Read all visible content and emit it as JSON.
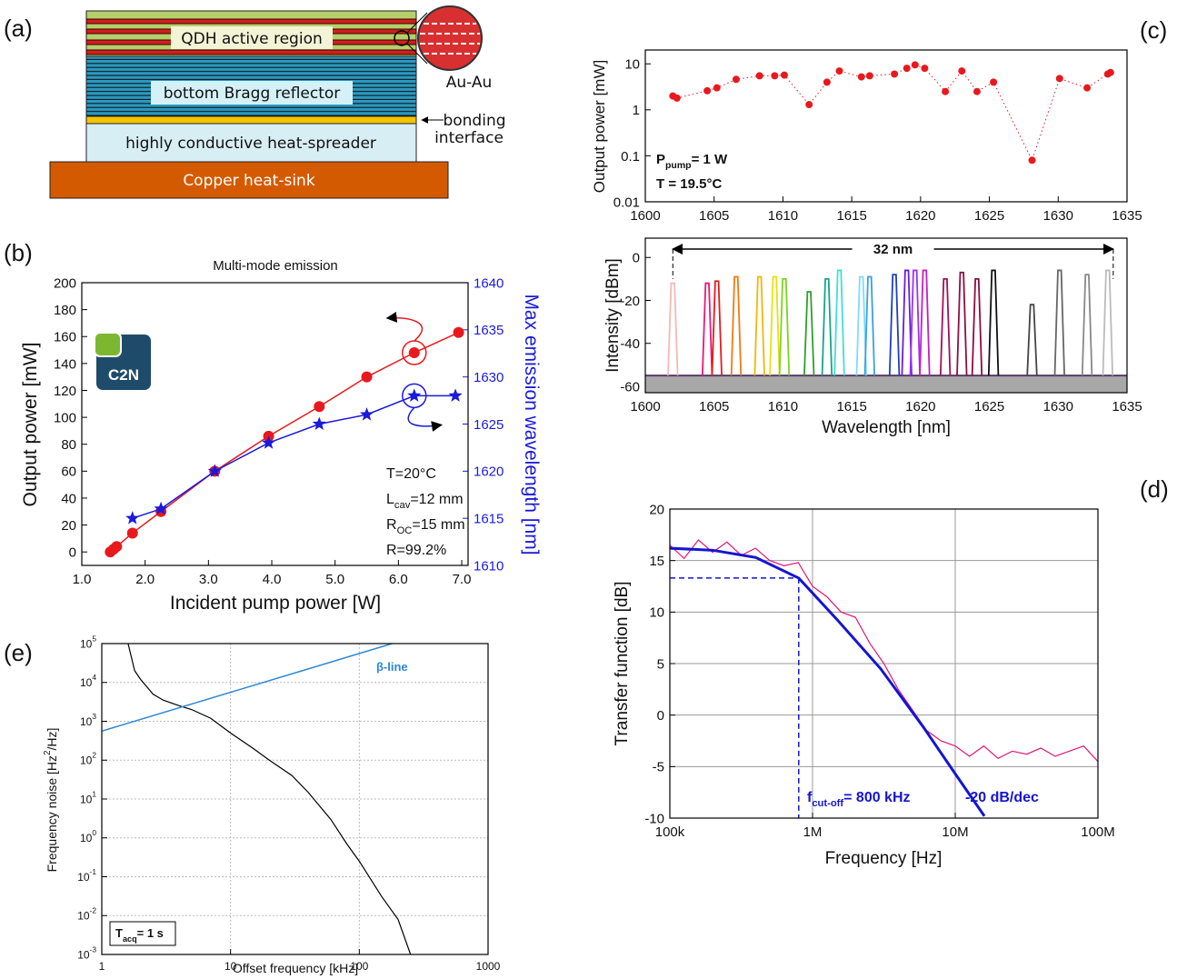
{
  "diagram": {
    "panel_label": "(a)",
    "layers": [
      "QDH active region",
      "bottom Bragg reflector",
      "highly conductive heat-spreader",
      "Copper heat-sink"
    ],
    "bonding_label": [
      "Au-Au",
      "bonding",
      "interface"
    ]
  },
  "chart_data": [
    {
      "type": "line",
      "panel_label": "(b)",
      "title": "Multi-mode emission",
      "x_label": "Incident pump power [W]",
      "y_label": "Output power [mW]",
      "y2_label": "Max emission wavelength [nm]",
      "logo_text": "C2N",
      "xlim": [
        1.0,
        7.1
      ],
      "xticks": [
        {
          "value": 1,
          "label": "1.0"
        },
        {
          "value": 2,
          "label": "2.0"
        },
        {
          "value": 3,
          "label": "3.0"
        },
        {
          "value": 4,
          "label": "4.0"
        },
        {
          "value": 5,
          "label": "5.0"
        },
        {
          "value": 6,
          "label": "6.0"
        },
        {
          "value": 7,
          "label": "7.0"
        }
      ],
      "ylim": [
        -10,
        200
      ],
      "yticks": [
        0,
        20,
        40,
        60,
        80,
        100,
        120,
        140,
        160,
        180,
        200
      ],
      "y2lim": [
        1610,
        1640
      ],
      "y2ticks": [
        1610,
        1615,
        1620,
        1625,
        1630,
        1635,
        1640
      ],
      "y2_color": "#1a1adb",
      "series": [
        {
          "color": "#e8191d",
          "marker": "circle",
          "x": [
            1.45,
            1.5,
            1.55,
            1.8,
            2.25,
            3.1,
            3.95,
            4.75,
            5.5,
            6.25,
            6.95
          ],
          "values": [
            0,
            2,
            4,
            14,
            30,
            60,
            86,
            108,
            130,
            148,
            163
          ]
        },
        {
          "color": "#1a1adb",
          "marker": "star",
          "axis": "y2",
          "x": [
            1.8,
            2.25,
            3.1,
            3.95,
            4.75,
            5.5,
            6.25,
            6.9
          ],
          "values": [
            1615,
            1616,
            1620,
            1623,
            1625,
            1626,
            1628,
            1628
          ]
        }
      ],
      "annotations": [
        {
          "text": "T=20°C"
        },
        {
          "text": "L",
          "sub": "cav",
          "after": "=12 mm"
        },
        {
          "text": "R",
          "sub": "OC",
          "after": "=15 mm"
        },
        {
          "text": "R=99.2%"
        }
      ]
    },
    {
      "type": "scatter",
      "panel_label": "(c)",
      "y_label": "Output power [mW]",
      "log_y": true,
      "xlim": [
        1600,
        1635
      ],
      "xticks": [
        1600,
        1605,
        1610,
        1615,
        1620,
        1625,
        1630,
        1635
      ],
      "ylim": [
        0.01,
        20
      ],
      "yticks": [
        0.01,
        0.1,
        1,
        10
      ],
      "series": [
        {
          "color": "#e8191d",
          "marker": "circle",
          "x": [
            1602,
            1602.3,
            1604.5,
            1605.2,
            1606.6,
            1608.3,
            1609.4,
            1610.1,
            1611.9,
            1613.2,
            1614.1,
            1615.7,
            1616.3,
            1618.1,
            1619.0,
            1619.6,
            1620.3,
            1621.8,
            1623.0,
            1624.1,
            1625.3,
            1628.1,
            1630.1,
            1632.1,
            1633.6,
            1633.8
          ],
          "values": [
            2.0,
            1.8,
            2.6,
            3.0,
            4.6,
            5.5,
            5.5,
            5.7,
            1.3,
            4.0,
            7.0,
            5.2,
            5.5,
            6.0,
            8.0,
            9.5,
            8.0,
            2.5,
            7.0,
            2.5,
            4.0,
            0.08,
            4.8,
            3.0,
            6.0,
            6.5
          ]
        }
      ],
      "annotations": [
        {
          "text": "P",
          "sub": "pump",
          "after": "= 1 W"
        },
        {
          "text": "T = 19.5°C"
        }
      ]
    },
    {
      "type": "spectrum",
      "y_label": "Intensity [dBm]",
      "x_label": "Wavelength [nm]",
      "xlim": [
        1600,
        1635
      ],
      "xticks": [
        1600,
        1605,
        1610,
        1615,
        1620,
        1625,
        1630,
        1635
      ],
      "ylim": [
        -63,
        9
      ],
      "yticks": [
        -60,
        -40,
        -20,
        0
      ],
      "floor": -55,
      "x": [
        1602,
        1604.5,
        1605.2,
        1606.6,
        1608.3,
        1609.4,
        1610.1,
        1611.9,
        1613.2,
        1614.1,
        1615.7,
        1616.3,
        1618.1,
        1619.0,
        1619.6,
        1620.3,
        1621.8,
        1623.0,
        1624.1,
        1625.3,
        1628.1,
        1630.1,
        1632.1,
        1633.6
      ],
      "values": [
        -12,
        -12,
        -11,
        -9,
        -9,
        -9,
        -10,
        -16,
        -10,
        -6,
        -9,
        -9,
        -8,
        -6,
        -6,
        -6,
        -10,
        -7,
        -10,
        -6,
        -22,
        -6,
        -8,
        -6
      ],
      "colors": [
        "#f4b8b8",
        "#e8197a",
        "#e8191d",
        "#f07a10",
        "#f2b705",
        "#e6e010",
        "#7ed321",
        "#2ca02c",
        "#17a589",
        "#40e0d0",
        "#7fdbff",
        "#3aa0e0",
        "#1f3fbf",
        "#6a1fd1",
        "#9b30ff",
        "#c21fc2",
        "#a0105a",
        "#8b1040",
        "#900c3f",
        "#111111",
        "#444444",
        "#666666",
        "#888888",
        "#bbbbbb"
      ],
      "span": {
        "label": "32 nm",
        "x": [
          1602,
          1634
        ]
      }
    },
    {
      "type": "line",
      "panel_label": "(d)",
      "y_label": "Transfer function [dB]",
      "x_label": "Frequency [Hz]",
      "log_x": true,
      "grid": true,
      "xlim": [
        100000,
        100000000
      ],
      "xticks": [
        {
          "value": 100000,
          "label": "100k"
        },
        {
          "value": 1000000,
          "label": "1M"
        },
        {
          "value": 10000000,
          "label": "10M"
        },
        {
          "value": 100000000,
          "label": "100M"
        }
      ],
      "ylim": [
        -10,
        20
      ],
      "yticks": [
        -10,
        -5,
        0,
        5,
        10,
        15,
        20
      ],
      "series": [
        {
          "color": "#e6157a",
          "x": [
            100000,
            125893,
            158489,
            199526,
            251189,
            316228,
            398107,
            501187,
            630957,
            794328,
            1000000,
            1258925,
            1584893,
            1995262,
            2511886,
            3162278,
            3981072,
            5011872,
            6309573,
            7943282,
            10000000,
            12589254,
            15848932,
            19952623,
            25118864,
            31622777,
            39810717,
            50118723,
            63095734,
            79432823,
            100000000
          ],
          "values": [
            16.5,
            15.2,
            17.0,
            15.8,
            16.8,
            15.5,
            16.2,
            15.0,
            14.5,
            14.8,
            12.5,
            11.5,
            10.0,
            9.5,
            7.0,
            5.0,
            2.5,
            0.5,
            -1.5,
            -2.5,
            -3.0,
            -4.0,
            -3.0,
            -4.2,
            -3.5,
            -3.8,
            -3.2,
            -4.0,
            -3.5,
            -3.0,
            -4.5
          ]
        },
        {
          "color": "#1515d0",
          "x": [
            100000,
            200000,
            400000,
            800000,
            1500000,
            3000000,
            6000000,
            10000000,
            16000000
          ],
          "values": [
            16.2,
            16.0,
            15.3,
            13.3,
            9.2,
            4.5,
            -1.2,
            -5.7,
            -9.8
          ]
        }
      ],
      "cutoff": {
        "x": 800000,
        "y": 13.3
      },
      "annotations": [
        {
          "text": "f",
          "sub": "cut-off",
          "after": "= 800 kHz"
        },
        {
          "text": "-20 dB/dec"
        }
      ]
    },
    {
      "type": "line",
      "panel_label": "(e)",
      "x_label": "Offset frequency [kHz]",
      "y_label": {
        "text": "Frequency noise [Hz",
        "sup": "2",
        "after": "/Hz]"
      },
      "log_x": true,
      "log_y": true,
      "grid": true,
      "xlim": [
        1,
        1000
      ],
      "xticks": [
        1,
        10,
        100,
        1000
      ],
      "ylim": [
        0.001,
        100000
      ],
      "yticks": [
        {
          "value": 0.001,
          "label": "10",
          "sup": "-3"
        },
        {
          "value": 0.01,
          "label": "10",
          "sup": "-2"
        },
        {
          "value": 0.1,
          "label": "10",
          "sup": "-1"
        },
        {
          "value": 1,
          "label": "10",
          "sup": "0"
        },
        {
          "value": 10,
          "label": "10",
          "sup": "1"
        },
        {
          "value": 100,
          "label": "10",
          "sup": "2"
        },
        {
          "value": 1000,
          "label": "10",
          "sup": "3"
        },
        {
          "value": 10000,
          "label": "10",
          "sup": "4"
        },
        {
          "value": 100000,
          "label": "10",
          "sup": "5"
        }
      ],
      "series": [
        {
          "color": "#000000",
          "x": [
            1.6,
            1.8,
            2,
            2.5,
            3,
            4,
            5,
            7,
            10,
            15,
            20,
            30,
            40,
            60,
            80,
            100,
            150,
            200,
            250
          ],
          "values": [
            100000,
            20000,
            12000,
            5000,
            3500,
            2500,
            2000,
            1200,
            500,
            200,
            100,
            40,
            15,
            3,
            0.7,
            0.25,
            0.03,
            0.008,
            0.001
          ]
        },
        {
          "color": "#2b87d8",
          "x": [
            1,
            180
          ],
          "values": [
            560,
            100000
          ]
        }
      ],
      "annotations": [
        {
          "text": "β-line"
        },
        {
          "text": "T",
          "sub": "acq",
          "after": "= 1 s"
        }
      ]
    }
  ]
}
